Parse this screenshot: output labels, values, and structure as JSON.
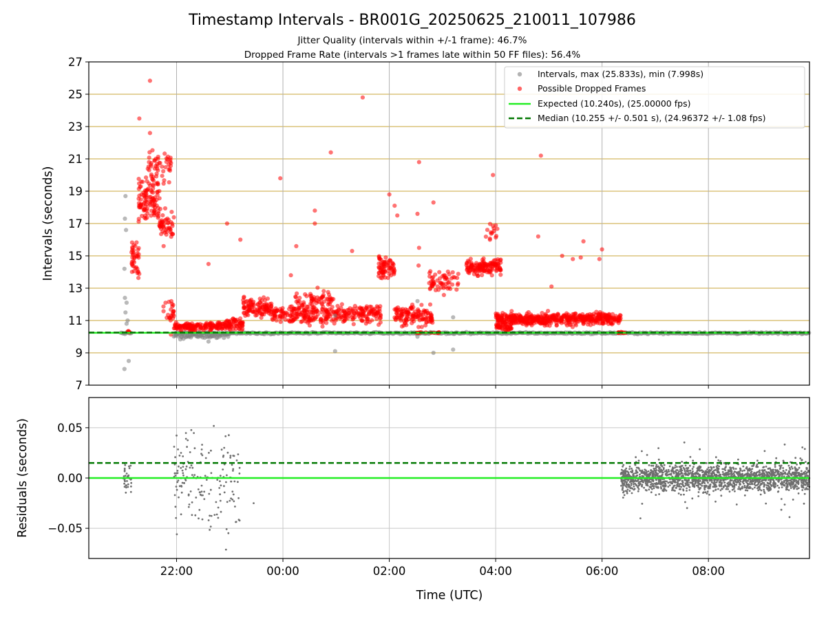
{
  "figure": {
    "title": "Timestamp Intervals - BR001G_20250625_210011_107986",
    "subtitle_1": "Jitter Quality (intervals within +/-1 frame): 46.7%",
    "subtitle_2": "Dropped Frame Rate (intervals >1 frames late within 50 FF files): 56.4%"
  },
  "chart_data": [
    {
      "type": "scatter",
      "panel": "top",
      "title": "",
      "xlabel": "",
      "ylabel": "Intervals (seconds)",
      "xlim": [
        20.35,
        33.9
      ],
      "ylim": [
        7,
        27
      ],
      "yticks": [
        7,
        9,
        11,
        13,
        15,
        17,
        19,
        21,
        23,
        25,
        27
      ],
      "yticklabels": [
        "7",
        "9",
        "11",
        "13",
        "15",
        "17",
        "19",
        "21",
        "23",
        "25",
        "27"
      ],
      "xticks": [
        22,
        24,
        26,
        28,
        30,
        32
      ],
      "grid": true,
      "legend_position": "top-right",
      "expected_value": 10.24,
      "median_value": 10.255,
      "colors": {
        "intervals": "#808080",
        "dropped": "#ff0000",
        "expected": "#22ee22",
        "median": "#007700",
        "hgrid": "#c8a43a",
        "vgrid": "#b0b0b0"
      },
      "series": [
        {
          "name": "Intervals, max (25.833s), min (7.998s)",
          "kind": "scatter",
          "note_outliers": [
            [
              21.02,
              7.998
            ],
            [
              21.04,
              18.7
            ],
            [
              21.03,
              17.3
            ],
            [
              21.05,
              16.6
            ],
            [
              21.02,
              14.2
            ],
            [
              21.03,
              12.4
            ],
            [
              21.06,
              12.1
            ],
            [
              21.04,
              11.5
            ],
            [
              21.08,
              11.0
            ],
            [
              21.06,
              10.8
            ],
            [
              21.1,
              8.5
            ],
            [
              22.1,
              10.0
            ],
            [
              22.6,
              9.7
            ],
            [
              24.98,
              11.3
            ],
            [
              24.98,
              9.1
            ],
            [
              26.53,
              12.2
            ],
            [
              26.53,
              10.0
            ],
            [
              26.83,
              9.0
            ],
            [
              27.2,
              11.2
            ],
            [
              27.2,
              9.2
            ]
          ]
        },
        {
          "name": "Possible Dropped Frames",
          "kind": "scatter",
          "note_outliers": [
            [
              21.5,
              25.833
            ],
            [
              21.3,
              23.5
            ],
            [
              21.5,
              22.6
            ],
            [
              22.95,
              17.0
            ],
            [
              22.6,
              14.5
            ],
            [
              23.2,
              16.0
            ],
            [
              23.95,
              19.8
            ],
            [
              24.25,
              15.6
            ],
            [
              24.15,
              13.8
            ],
            [
              24.6,
              17.8
            ],
            [
              24.6,
              17.0
            ],
            [
              24.9,
              21.4
            ],
            [
              25.5,
              24.8
            ],
            [
              25.3,
              15.3
            ],
            [
              26.0,
              18.8
            ],
            [
              26.1,
              18.1
            ],
            [
              26.15,
              17.5
            ],
            [
              27.95,
              20.0
            ],
            [
              28.85,
              21.2
            ],
            [
              28.8,
              16.2
            ],
            [
              29.05,
              13.1
            ],
            [
              29.25,
              15.0
            ],
            [
              29.45,
              14.8
            ],
            [
              29.6,
              14.9
            ],
            [
              29.65,
              15.9
            ],
            [
              29.95,
              14.8
            ],
            [
              30.0,
              15.4
            ],
            [
              26.56,
              20.8
            ],
            [
              26.53,
              17.6
            ],
            [
              26.56,
              15.5
            ],
            [
              26.55,
              14.4
            ],
            [
              26.83,
              18.3
            ],
            [
              26.83,
              13.4
            ]
          ]
        },
        {
          "name": "Expected (10.240s), (25.00000 fps)",
          "kind": "hline",
          "value": 10.24
        },
        {
          "name": "Median (10.255 +/- 0.501 s), (24.96372 +/- 1.08 fps)",
          "kind": "hline",
          "value": 10.255
        }
      ]
    },
    {
      "type": "scatter",
      "panel": "bottom",
      "title": "",
      "xlabel": "Time (UTC)",
      "ylabel": "Residuals (seconds)",
      "xlim": [
        20.35,
        33.9
      ],
      "ylim": [
        -0.08,
        0.08
      ],
      "yticks": [
        -0.05,
        0.0,
        0.05
      ],
      "yticklabels": [
        "−0.05",
        "0.00",
        "0.05"
      ],
      "xticks": [
        22,
        24,
        26,
        28,
        30,
        32
      ],
      "xticklabels": [
        "22:00",
        "00:00",
        "02:00",
        "04:00",
        "06:00",
        "08:00"
      ],
      "grid": true,
      "expected_value": 0.0,
      "median_value": 0.015,
      "colors": {
        "points": "#6f6f6f",
        "expected": "#22ee22",
        "median": "#007700",
        "grid": "#c8c8c8"
      }
    }
  ]
}
